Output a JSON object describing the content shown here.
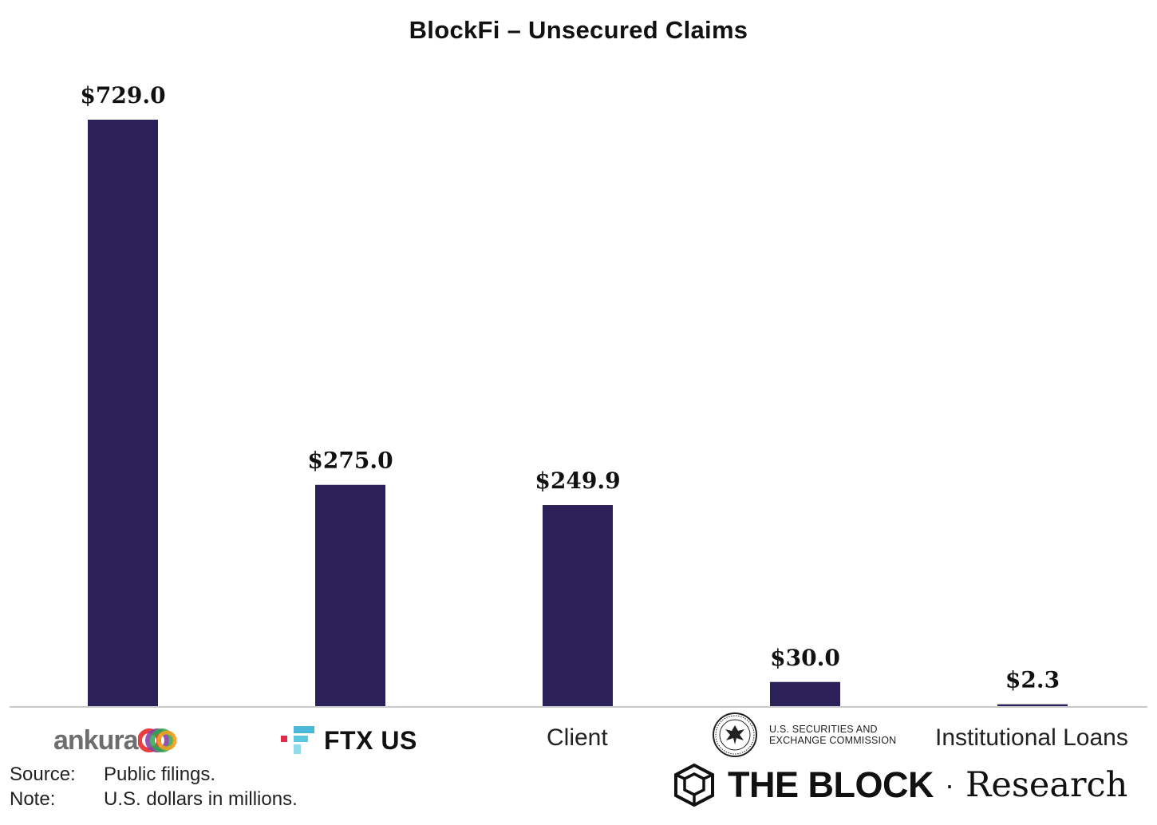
{
  "chart_data": {
    "type": "bar",
    "title": "BlockFi – Unsecured Claims",
    "categories": [
      "ankura",
      "FTX US",
      "Client",
      "U.S. SECURITIES AND EXCHANGE COMMISSION",
      "Institutional Loans"
    ],
    "values": [
      729.0,
      275.0,
      249.9,
      30.0,
      2.3
    ],
    "value_labels": [
      "$729.0",
      "$275.0",
      "$249.9",
      "$30.0",
      "$2.3"
    ],
    "xlabel": "",
    "ylabel": "",
    "ylim": [
      0,
      729.0
    ],
    "grid": false,
    "legend": "none",
    "bar_color": "#2b2158"
  },
  "categories_display": {
    "ankura": "ankura",
    "ftx": "FTX US",
    "client": "Client",
    "sec_line1": "U.S. SECURITIES AND",
    "sec_line2": "EXCHANGE COMMISSION",
    "institutional": "Institutional Loans"
  },
  "icons": {
    "ankura": "ankura-rings-logo-icon",
    "ftx": "ftx-logo-icon",
    "sec": "sec-seal-icon",
    "theblock": "the-block-cube-logo-icon"
  },
  "footer": {
    "source_key": "Source:",
    "source_value": "Public filings.",
    "note_key": "Note:",
    "note_value": "U.S. dollars in millions."
  },
  "brand": {
    "name": "THE BLOCK",
    "separator": "·",
    "suffix": "Research"
  }
}
